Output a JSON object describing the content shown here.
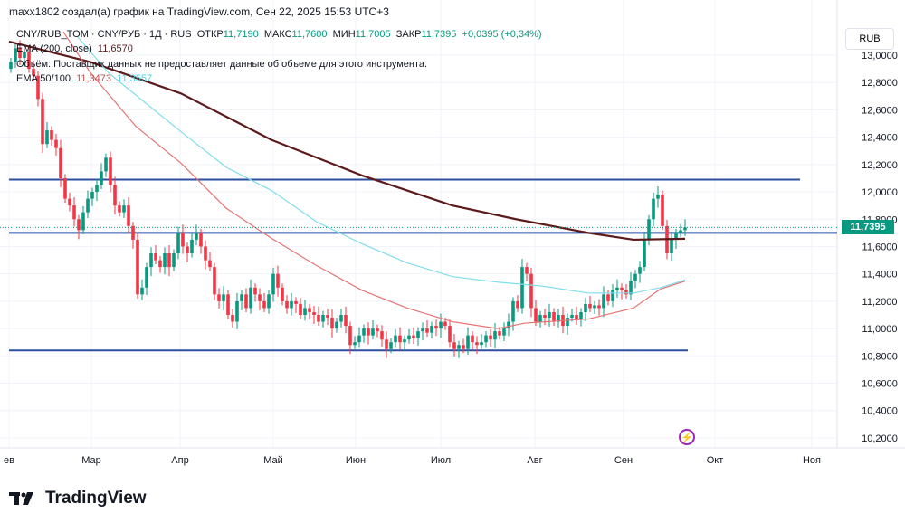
{
  "caption": "maxx1802 создал(а) график на TradingView.com, Сен 22, 2025 15:53 UTC+3",
  "legend": {
    "symbol": "CNY/RUB_TOM · CNY/РУБ · 1Д · RUS",
    "open_label": "ОТКР",
    "open": "11,7190",
    "high_label": "МАКС",
    "high": "11,7600",
    "low_label": "МИН",
    "low": "11,7005",
    "close_label": "ЗАКР",
    "close": "11,7395",
    "change": "+0,0395 (+0,34%)",
    "ema200_label": "EMA (200, close)",
    "ema200_value": "11,6570",
    "volume_note": "Объём: Поставщик данных не предоставляет данные об объеме для этого инструмента.",
    "ema50_100_label": "EMA 50/100",
    "ema50_value": "11,3473",
    "ema100_value": "11,3557"
  },
  "currency_button": "RUB",
  "last_price_label": "11,7395",
  "brand": "TradingView",
  "colors": {
    "up": "#089981",
    "down": "#f23645",
    "ema200": "#5d1a1a",
    "ema50": "#e57373",
    "ema100": "#80deea",
    "levels": "#2e4fa0"
  },
  "chart_data": {
    "type": "candlestick",
    "title": "CNY/RUB_TOM · 1Д",
    "ylim": [
      10.05,
      13.15
    ],
    "y_ticks": [
      "13,0000",
      "12,8000",
      "12,6000",
      "12,4000",
      "12,2000",
      "12,0000",
      "11,8000",
      "11,6000",
      "11,4000",
      "11,2000",
      "11,0000",
      "10,8000",
      "10,6000",
      "10,4000",
      "10,2000"
    ],
    "y_tick_values": [
      13.0,
      12.8,
      12.6,
      12.4,
      12.2,
      12.0,
      11.8,
      11.6,
      11.4,
      11.2,
      11.0,
      10.8,
      10.6,
      10.4,
      10.2
    ],
    "x_ticks": [
      {
        "label": "ев",
        "idx": -0.4
      },
      {
        "label": "Мар",
        "idx": 17.8
      },
      {
        "label": "Апр",
        "idx": 37.4
      },
      {
        "label": "Май",
        "idx": 58
      },
      {
        "label": "Июн",
        "idx": 76.2
      },
      {
        "label": "Июл",
        "idx": 95
      },
      {
        "label": "Авг",
        "idx": 115.8
      },
      {
        "label": "Сен",
        "idx": 135.4
      },
      {
        "label": "Окт",
        "idx": 155.6
      },
      {
        "label": "Ноя",
        "idx": 177
      }
    ],
    "open_first": 12.9,
    "closes": [
      12.95,
      13.05,
      12.98,
      13.02,
      12.9,
      12.85,
      12.68,
      12.35,
      12.45,
      12.38,
      12.32,
      12.1,
      11.95,
      11.9,
      11.8,
      11.72,
      11.85,
      11.95,
      12.0,
      12.05,
      12.15,
      12.25,
      12.05,
      11.9,
      11.85,
      11.9,
      11.75,
      11.65,
      11.25,
      11.3,
      11.45,
      11.55,
      11.5,
      11.45,
      11.55,
      11.45,
      11.55,
      11.7,
      11.6,
      11.55,
      11.65,
      11.7,
      11.6,
      11.5,
      11.45,
      11.25,
      11.2,
      11.25,
      11.1,
      11.05,
      11.2,
      11.25,
      11.15,
      11.3,
      11.25,
      11.2,
      11.15,
      11.25,
      11.4,
      11.3,
      11.2,
      11.15,
      11.2,
      11.18,
      11.1,
      11.15,
      11.12,
      11.1,
      11.05,
      11.1,
      11.08,
      11.0,
      11.05,
      11.1,
      11.02,
      10.88,
      10.9,
      10.95,
      11.0,
      10.95,
      11.0,
      10.98,
      10.92,
      10.85,
      10.9,
      10.95,
      10.9,
      10.92,
      10.95,
      10.93,
      10.98,
      11.0,
      10.97,
      11.02,
      11.0,
      11.05,
      11.02,
      10.9,
      10.85,
      10.88,
      10.85,
      10.95,
      10.9,
      10.88,
      10.9,
      10.95,
      10.92,
      10.98,
      10.95,
      11.0,
      11.05,
      11.2,
      11.15,
      11.45,
      11.4,
      11.15,
      11.05,
      11.1,
      11.08,
      11.12,
      11.05,
      11.1,
      11.02,
      11.08,
      11.1,
      11.07,
      11.12,
      11.18,
      11.15,
      11.17,
      11.15,
      11.25,
      11.2,
      11.28,
      11.3,
      11.28,
      11.25,
      11.35,
      11.4,
      11.45,
      11.65,
      11.8,
      11.95,
      11.98,
      11.75,
      11.55,
      11.65,
      11.7,
      11.72,
      11.7395
    ],
    "series": [
      {
        "name": "EMA 200",
        "points": [
          [
            -0.4,
            13.1
          ],
          [
            17.6,
            12.95
          ],
          [
            37.6,
            12.72
          ],
          [
            57.6,
            12.38
          ],
          [
            77.6,
            12.12
          ],
          [
            97.6,
            11.9
          ],
          [
            111.6,
            11.8
          ],
          [
            127.6,
            11.7
          ],
          [
            137.6,
            11.65
          ],
          [
            149,
            11.657
          ]
        ]
      },
      {
        "name": "EMA 50",
        "points": [
          [
            11.6,
            13.17
          ],
          [
            17.6,
            12.87
          ],
          [
            27.6,
            12.48
          ],
          [
            37.6,
            12.21
          ],
          [
            47.6,
            11.88
          ],
          [
            57.6,
            11.66
          ],
          [
            67.6,
            11.46
          ],
          [
            77.6,
            11.28
          ],
          [
            87.6,
            11.15
          ],
          [
            97.6,
            11.05
          ],
          [
            107.6,
            11.0
          ],
          [
            113.6,
            11.04
          ],
          [
            127.6,
            11.07
          ],
          [
            137.6,
            11.15
          ],
          [
            143.6,
            11.29
          ],
          [
            149,
            11.347
          ]
        ]
      },
      {
        "name": "EMA 100",
        "points": [
          [
            14.6,
            13.14
          ],
          [
            21.6,
            12.87
          ],
          [
            37.6,
            12.44
          ],
          [
            47.6,
            12.18
          ],
          [
            57.6,
            12.01
          ],
          [
            67.6,
            11.78
          ],
          [
            77.6,
            11.62
          ],
          [
            87.6,
            11.48
          ],
          [
            97.6,
            11.38
          ],
          [
            107.6,
            11.34
          ],
          [
            117.6,
            11.31
          ],
          [
            127.6,
            11.26
          ],
          [
            137.6,
            11.26
          ],
          [
            143.6,
            11.3
          ],
          [
            149,
            11.356
          ]
        ]
      }
    ],
    "levels": [
      {
        "price": 12.09,
        "to_idx": 174.4
      },
      {
        "price": 11.7,
        "to_idx": 182.6
      },
      {
        "price": 10.84,
        "to_idx": 149.6
      }
    ]
  }
}
